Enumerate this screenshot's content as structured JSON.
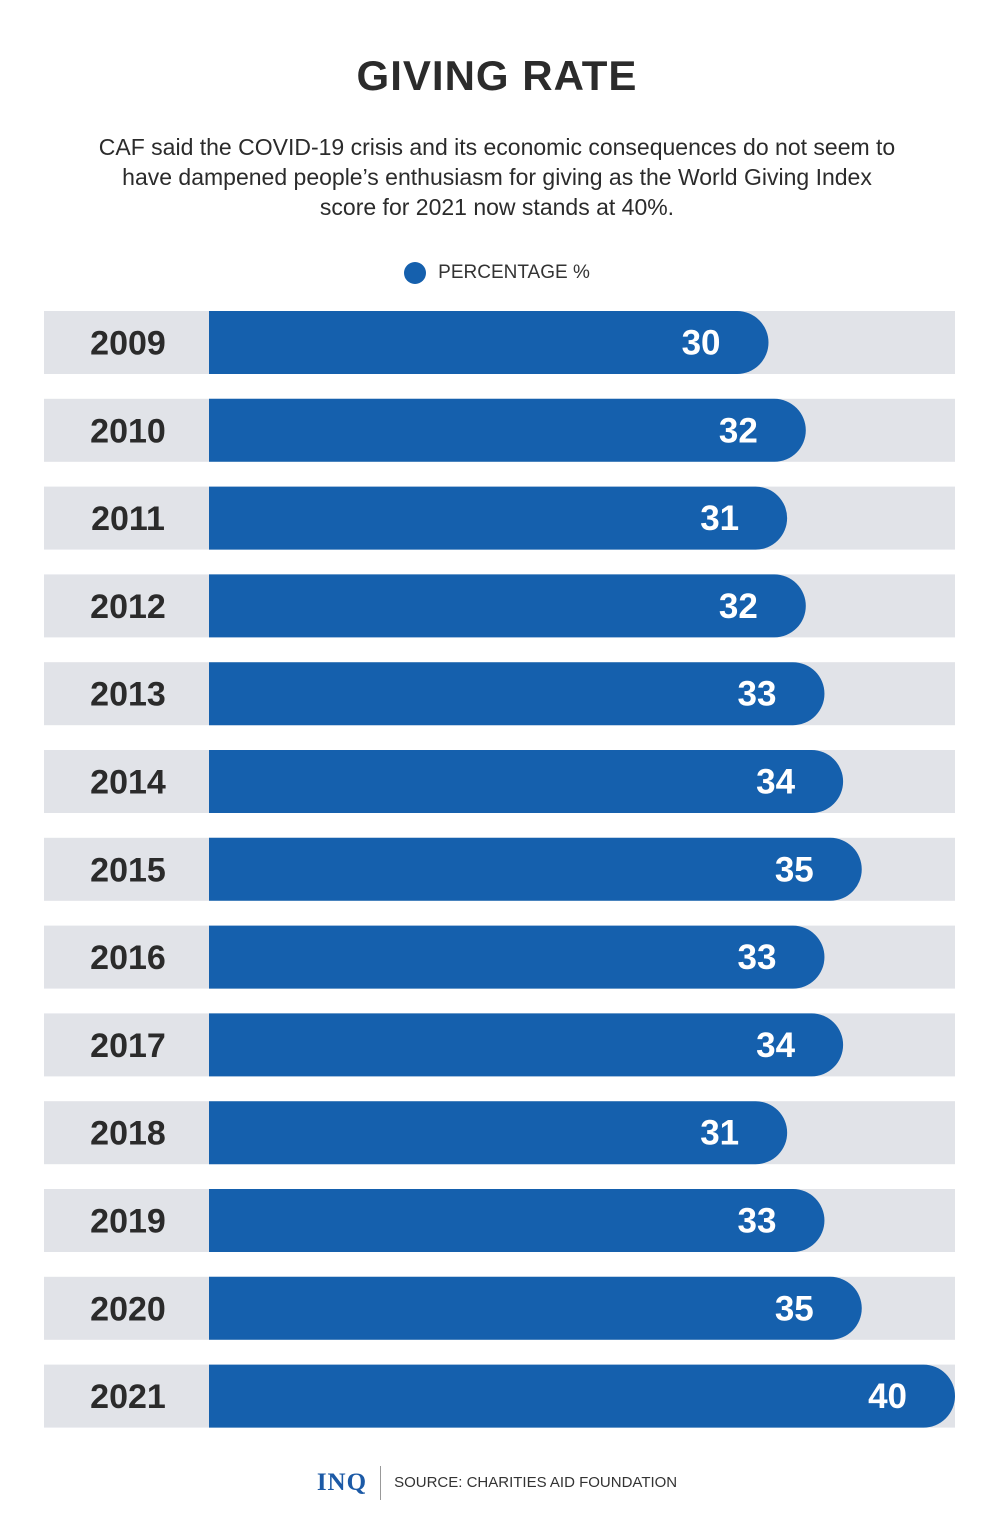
{
  "chart_data": {
    "type": "bar",
    "orientation": "horizontal",
    "title": "GIVING RATE",
    "subtitle": "CAF said the COVID-19 crisis and its economic consequences do not seem to have dampened people’s enthusiasm for giving as the World Giving Index score for 2021 now stands at 40%.",
    "legend": {
      "label": "PERCENTAGE %",
      "placement": "top-center"
    },
    "categories": [
      "2009",
      "2010",
      "2011",
      "2012",
      "2013",
      "2014",
      "2015",
      "2016",
      "2017",
      "2018",
      "2019",
      "2020",
      "2021"
    ],
    "series": [
      {
        "name": "PERCENTAGE %",
        "values": [
          30,
          32,
          31,
          32,
          33,
          34,
          35,
          33,
          34,
          31,
          33,
          35,
          40
        ]
      }
    ],
    "xlim": [
      0,
      40
    ],
    "grid": false
  },
  "colors": {
    "bar": "#1560ad",
    "track": "#e1e3e8",
    "year_text": "#2b2b2b",
    "value_text": "#ffffff",
    "logo": "#1c5aa6"
  },
  "footer": {
    "logo": "INQ",
    "source": "SOURCE: CHARITIES AID FOUNDATION"
  }
}
